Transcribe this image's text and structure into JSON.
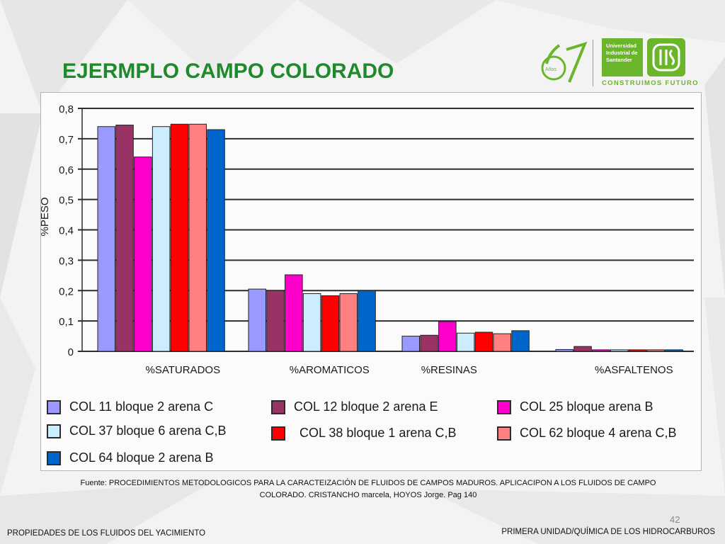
{
  "slide": {
    "title": "EJERMPLO CAMPO COLORADO",
    "page_number": "42",
    "footnote_line1": "Fuente: PROCEDIMIENTOS METODOLOGICOS PARA LA CARACTEIZACIÓN DE FLUIDOS DE CAMPOS MADUROS. APLICACIPON A LOS FLUIDOS DE CAMPO",
    "footnote_line2": "COLORADO. CRISTANCHO marcela, HOYOS Jorge. Pag 140",
    "footer_left": "PROPIEDADES DE LOS FLUIDOS DEL YACIMIENTO",
    "footer_right": "PRIMERA UNIDAD/QUÍMICA DE LOS HIDROCARBUROS"
  },
  "logo": {
    "anniversary_number": "67",
    "anniversary_word": "Años",
    "university_line1": "Universidad",
    "university_line2": "Industrial de",
    "university_line3": "Santander",
    "slogan": "CONSTRUIMOS FUTURO",
    "brand_color": "#6bb52b"
  },
  "chart_data": {
    "type": "bar",
    "ylabel": "%PESO",
    "ylim": [
      0,
      0.8
    ],
    "y_ticks": [
      "0",
      "0,1",
      "0,2",
      "0,3",
      "0,4",
      "0,5",
      "0,6",
      "0,7",
      "0,8"
    ],
    "categories": [
      "%SATURADOS",
      "%AROMATICOS",
      "%RESINAS",
      "%ASFALTENOS"
    ],
    "grid": true,
    "legend_position": "bottom",
    "series": [
      {
        "name": "COL 11 bloque 2 arena C",
        "color": "#9999ff",
        "values": [
          0.74,
          0.205,
          0.05,
          0.006
        ]
      },
      {
        "name": "COL 12 bloque 2 arena E",
        "color": "#993366",
        "values": [
          0.745,
          0.2,
          0.053,
          0.016
        ]
      },
      {
        "name": "COL 25 bloque arena B",
        "color": "#ff00cc",
        "values": [
          0.64,
          0.252,
          0.098,
          0.005
        ]
      },
      {
        "name": "COL 37 bloque 6 arena C,B",
        "color": "#ccecff",
        "values": [
          0.74,
          0.19,
          0.06,
          0.005
        ]
      },
      {
        "name": "COL 38 bloque 1 arena C,B",
        "color": "#ff0000",
        "values": [
          0.748,
          0.183,
          0.063,
          0.005
        ]
      },
      {
        "name": "COL 62 bloque 4 arena C,B",
        "color": "#ff8080",
        "values": [
          0.748,
          0.19,
          0.058,
          0.005
        ]
      },
      {
        "name": "COL 64 bloque 2 arena B",
        "color": "#0066cc",
        "values": [
          0.73,
          0.2,
          0.068,
          0.005
        ]
      }
    ]
  }
}
